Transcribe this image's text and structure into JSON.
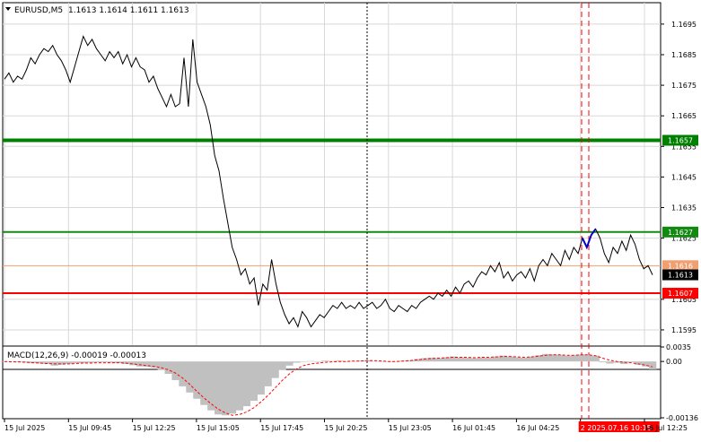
{
  "header": {
    "symbol": "EURUSD,M5",
    "ohlc": "1.1613 1.1614 1.1611 1.1613"
  },
  "colors": {
    "price_line": "#000000",
    "strong_level": "#008000",
    "level_green": "#128a12",
    "level_red": "#ff0000",
    "level_orange": "#f0a070",
    "histogram": "#c0c0c0",
    "signal": "#ff0000",
    "grid": "#d8d8d8",
    "highlight_segment": "#0000cc"
  },
  "chart_data": [
    {
      "type": "line",
      "name": "main-price",
      "ylim": [
        1.159,
        1.1702
      ],
      "y_ticks": [
        "1.1695",
        "1.1685",
        "1.1675",
        "1.1665",
        "1.1655",
        "1.1645",
        "1.1635",
        "1.1625",
        "1.1605",
        "1.1595"
      ],
      "x_ticks": [
        "15 Jul 2025",
        "15 Jul 09:45",
        "15 Jul 12:25",
        "15 Jul 15:05",
        "15 Jul 17:45",
        "15 Jul 20:25",
        "15 Jul 23:05",
        "16 Jul 01:45",
        "16 Jul 04:25",
        "2 2025.07.16 10:15",
        "16 Jul 12:25"
      ],
      "series": [
        {
          "values": [
            1.1677,
            1.1679,
            1.1676,
            1.1678,
            1.1677,
            1.168,
            1.1684,
            1.1682,
            1.1685,
            1.1687,
            1.1686,
            1.1688,
            1.1685,
            1.1683,
            1.168,
            1.1676,
            1.1681,
            1.1686,
            1.1691,
            1.1688,
            1.169,
            1.1687,
            1.1685,
            1.1683,
            1.1686,
            1.1684,
            1.1686,
            1.1682,
            1.1685,
            1.1681,
            1.1684,
            1.1681,
            1.168,
            1.1676,
            1.1678,
            1.1674,
            1.1671,
            1.1668,
            1.1672,
            1.1668,
            1.1669,
            1.1684,
            1.1668,
            1.169,
            1.1676,
            1.1672,
            1.1668,
            1.1662,
            1.1652,
            1.1647,
            1.1638,
            1.163,
            1.1622,
            1.1618,
            1.1613,
            1.1615,
            1.161,
            1.1612,
            1.1603,
            1.161,
            1.1608,
            1.1618,
            1.161,
            1.1604,
            1.16,
            1.1597,
            1.1599,
            1.1596,
            1.1601,
            1.1599,
            1.1596,
            1.1598,
            1.16,
            1.1599,
            1.1601,
            1.1603,
            1.1602,
            1.1604,
            1.1602,
            1.1603,
            1.1602,
            1.1604,
            1.1602,
            1.1603,
            1.1604,
            1.1602,
            1.1603,
            1.1605,
            1.1602,
            1.1601,
            1.1603,
            1.1602,
            1.1601,
            1.1603,
            1.1602,
            1.1604,
            1.1605,
            1.1606,
            1.1605,
            1.1607,
            1.1606,
            1.1608,
            1.1606,
            1.1609,
            1.1607,
            1.161,
            1.1611,
            1.1609,
            1.1612,
            1.1614,
            1.1613,
            1.1616,
            1.1614,
            1.1617,
            1.1612,
            1.1614,
            1.1611,
            1.1613,
            1.1614,
            1.1612,
            1.1615,
            1.1611,
            1.1616,
            1.1618,
            1.1616,
            1.162,
            1.1618,
            1.1616,
            1.1621,
            1.1618,
            1.1622,
            1.162,
            1.1625,
            1.1622,
            1.1626,
            1.1628,
            1.1625,
            1.162,
            1.1617,
            1.1622,
            1.162,
            1.1624,
            1.1621,
            1.1626,
            1.1623,
            1.1618,
            1.1615,
            1.1616,
            1.1613
          ]
        }
      ],
      "highlight_segment": {
        "from_index": 132,
        "to_index": 135
      },
      "levels": [
        {
          "label": "1.1657",
          "value": 1.1657,
          "color_key": "strong_level"
        },
        {
          "label": "1.1627",
          "value": 1.1627,
          "color_key": "level_green"
        },
        {
          "label": "1.1616",
          "value": 1.1616,
          "color_key": "level_orange"
        },
        {
          "label": "1.1613",
          "value": 1.1613,
          "color_key": "price_line"
        },
        {
          "label": "1.1607",
          "value": 1.1607,
          "color_key": "level_red"
        }
      ]
    },
    {
      "type": "area",
      "name": "macd",
      "title": "MACD(12,26,9) -0.00019 -0.00013",
      "y_ticks": [
        "0.0035",
        "0.00",
        "-0.00136"
      ],
      "ylim": [
        -0.00136,
        0.00035
      ],
      "histogram": [
        0.0,
        -1e-05,
        -2e-05,
        -3e-05,
        -4e-05,
        -5e-05,
        -6e-05,
        -0.0001,
        -8e-05,
        -6e-05,
        -4e-05,
        -4e-05,
        -3e-05,
        -2e-05,
        -2e-05,
        -3e-05,
        -4e-05,
        -6e-05,
        -9e-05,
        -0.00012,
        -0.00013,
        -0.00015,
        -0.0002,
        -0.0003,
        -0.00045,
        -0.0006,
        -0.00075,
        -0.0009,
        -0.00105,
        -0.00118,
        -0.00128,
        -0.0013,
        -0.00126,
        -0.00118,
        -0.00108,
        -0.00095,
        -0.0008,
        -0.0006,
        -0.0004,
        -0.0002,
        -0.0001,
        -3e-05,
        0.0,
        1e-05,
        0.0,
        2e-05,
        1e-05,
        2e-05,
        0.0,
        1e-05,
        2e-05,
        3e-05,
        1e-05,
        0.0,
        -1e-05,
        0.0,
        2e-05,
        3e-05,
        6e-05,
        8e-05,
        9e-05,
        8e-05,
        0.0001,
        0.00012,
        0.0001,
        9e-05,
        8e-05,
        0.0001,
        9e-05,
        0.00012,
        0.00014,
        0.00012,
        0.0001,
        9e-05,
        0.00012,
        0.00015,
        0.00018,
        0.00017,
        0.00016,
        0.00014,
        0.00015,
        0.00017,
        0.00016,
        0.00014,
        -2e-05,
        -5e-05,
        -3e-05,
        -6e-05,
        -2e-05,
        -8e-05,
        -0.00012,
        -0.00019
      ],
      "signal": [
        0.0,
        -1e-05,
        -1e-05,
        -2e-05,
        -3e-05,
        -4e-05,
        -5e-05,
        -6e-05,
        -6e-05,
        -6e-05,
        -5e-05,
        -4e-05,
        -4e-05,
        -3e-05,
        -3e-05,
        -3e-05,
        -3e-05,
        -4e-05,
        -6e-05,
        -8e-05,
        -0.0001,
        -0.00012,
        -0.00015,
        -0.0002,
        -0.00028,
        -0.0004,
        -0.00055,
        -0.00072,
        -0.00088,
        -0.00102,
        -0.00115,
        -0.00124,
        -0.0013,
        -0.00128,
        -0.00122,
        -0.00112,
        -0.00098,
        -0.00082,
        -0.00064,
        -0.00046,
        -0.0003,
        -0.00018,
        -0.0001,
        -6e-05,
        -4e-05,
        -2e-05,
        -1e-05,
        0.0,
        0.0,
        1e-05,
        1e-05,
        2e-05,
        2e-05,
        1e-05,
        0.0,
        0.0,
        1e-05,
        2e-05,
        4e-05,
        6e-05,
        7e-05,
        8e-05,
        9e-05,
        0.0001,
        0.0001,
        0.0001,
        9e-05,
        0.0001,
        0.0001,
        0.00011,
        0.00012,
        0.00012,
        0.00011,
        0.0001,
        0.00011,
        0.00013,
        0.00015,
        0.00016,
        0.00016,
        0.00015,
        0.00015,
        0.00016,
        0.00016,
        0.00014,
        8e-05,
        3e-05,
        0.0,
        -2e-05,
        -3e-05,
        -6e-05,
        -9e-05,
        -0.00013
      ]
    }
  ]
}
